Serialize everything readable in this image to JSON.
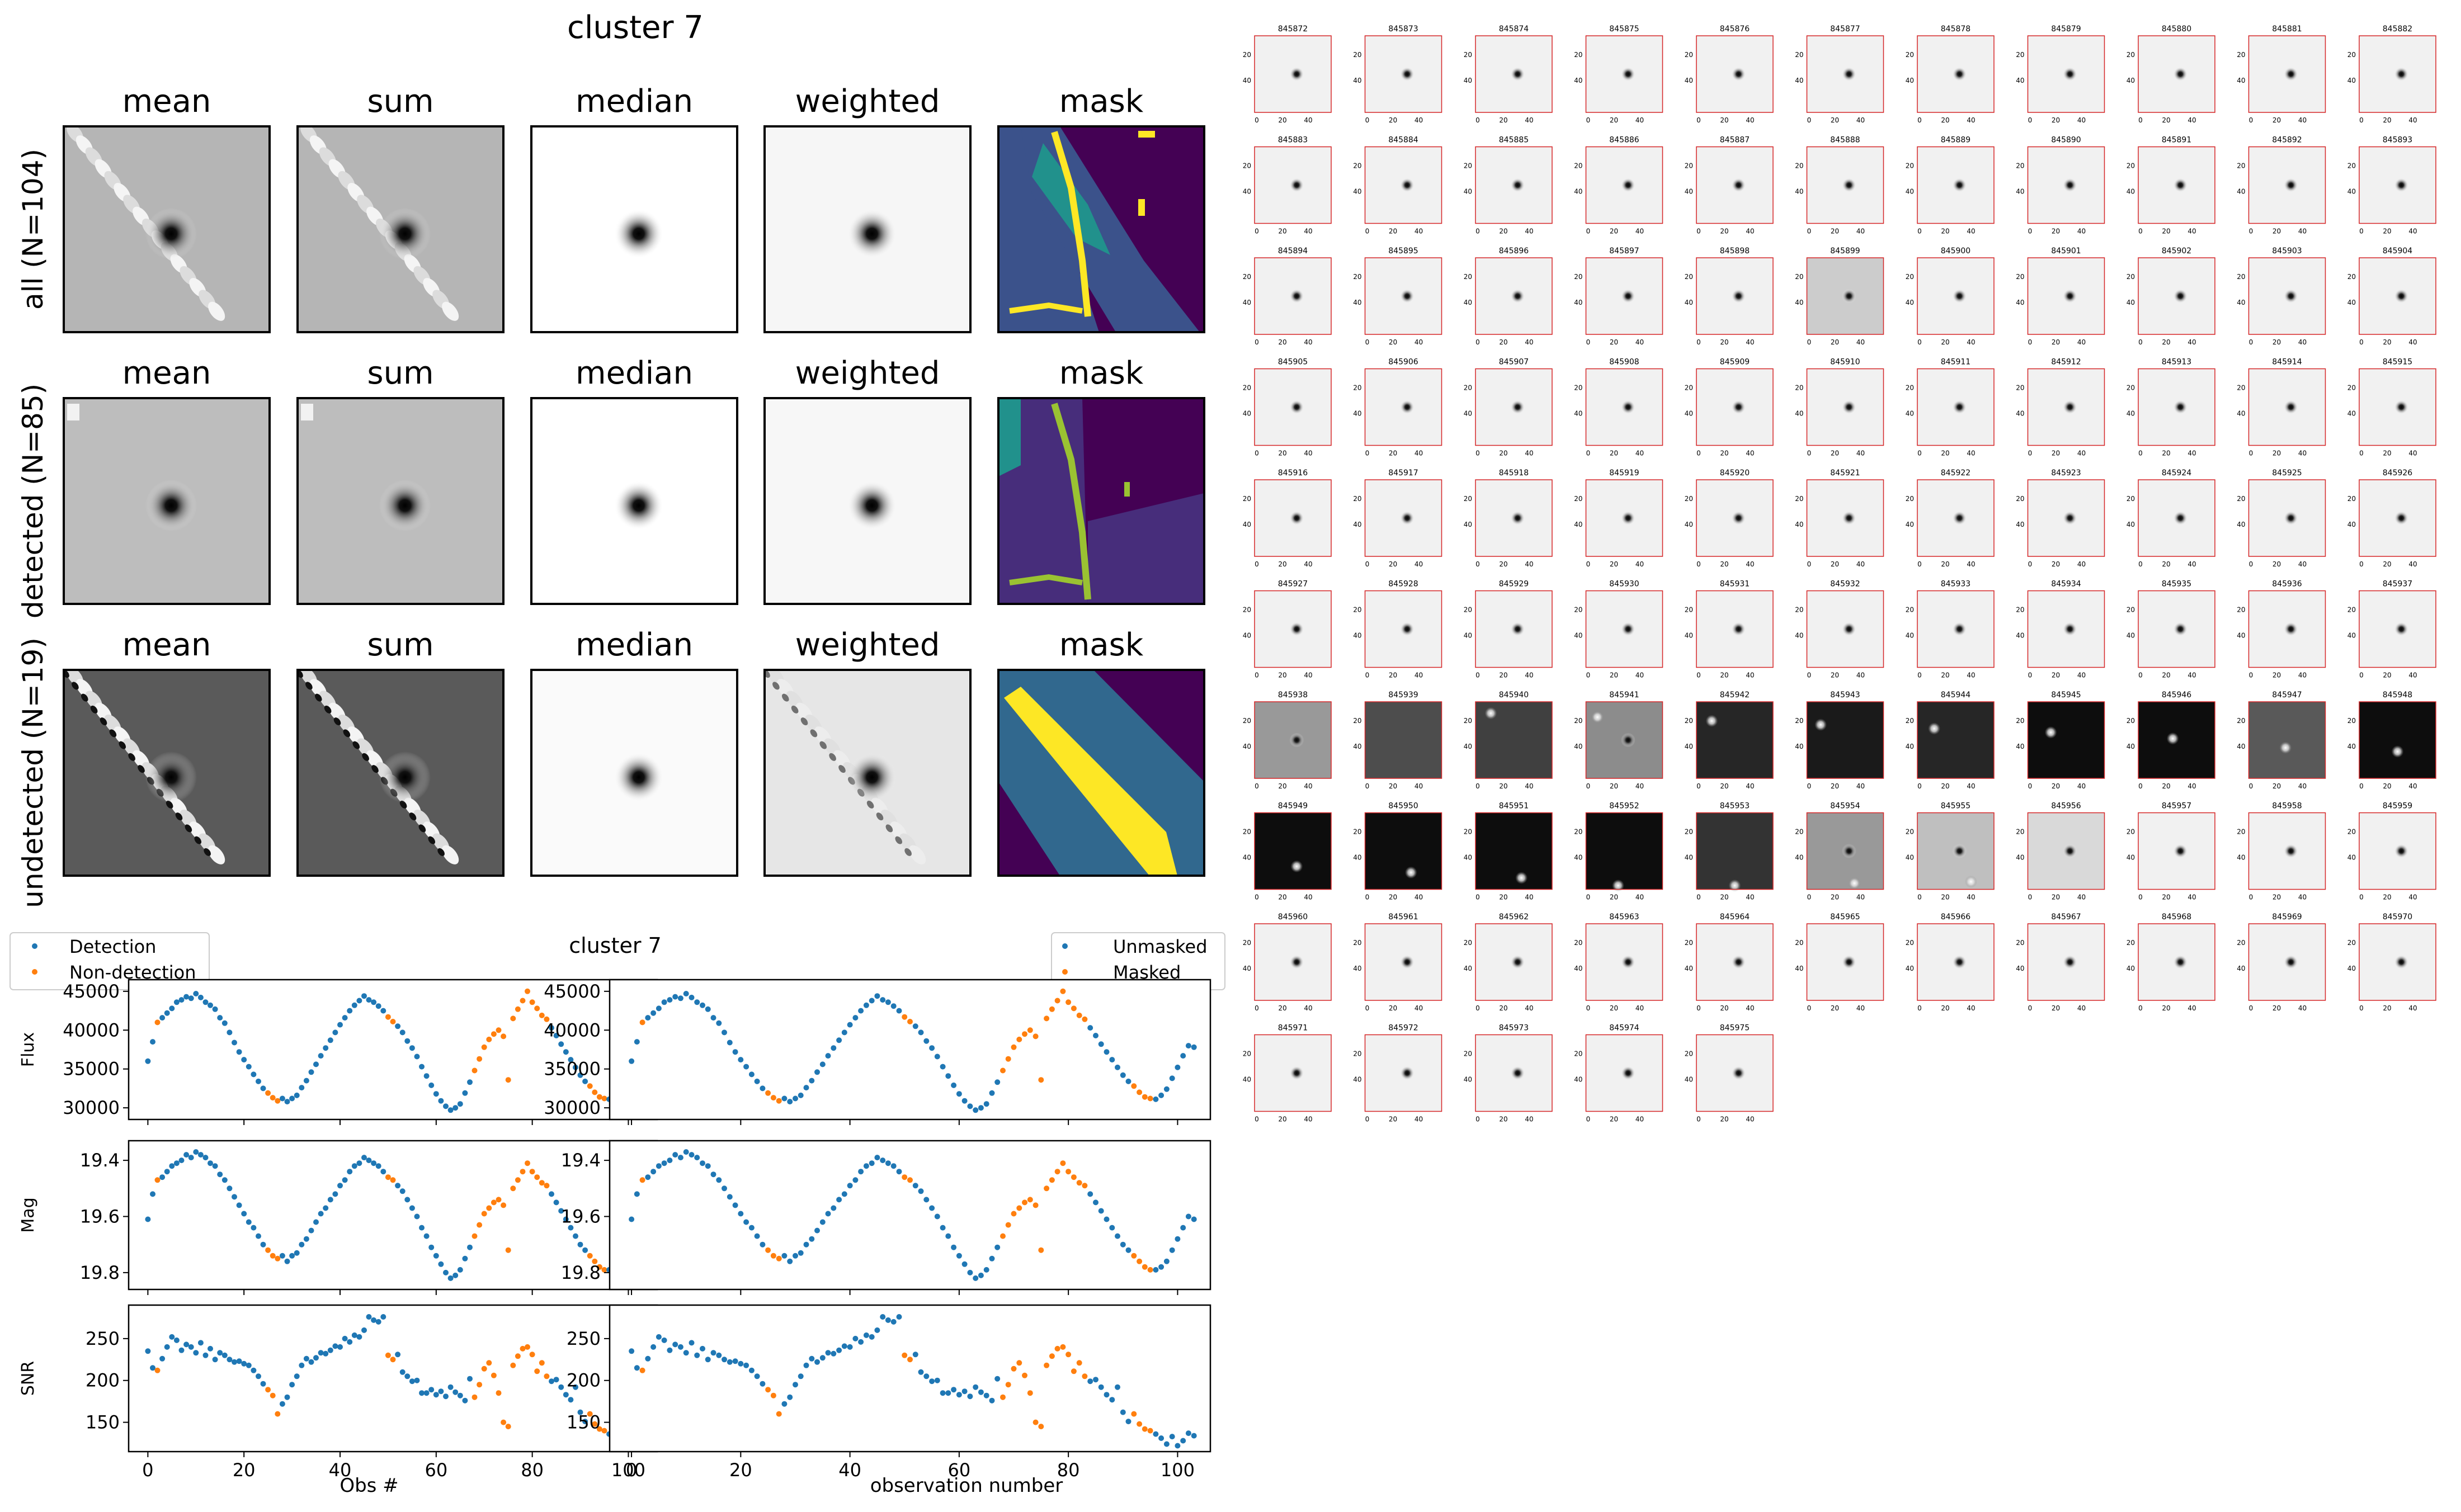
{
  "stack_title": "cluster 7",
  "col_labels": [
    "mean",
    "sum",
    "median",
    "weighted",
    "mask"
  ],
  "row_labels": [
    "all (N=104)",
    "detected (N=85)",
    "undetected (N=19)"
  ],
  "lc_title": "cluster 7",
  "legend_left": {
    "detection": "Detection",
    "non_detection": "Non-detection"
  },
  "legend_right": {
    "unmasked": "Unmasked",
    "masked": "Masked"
  },
  "xlabel_left": "Obs #",
  "xlabel_right": "observation number",
  "panels": [
    {
      "ylabel": "Flux",
      "ymin": 28500,
      "ymax": 46500,
      "ticks": [
        45000,
        40000,
        35000,
        30000
      ]
    },
    {
      "ylabel": "Mag",
      "ymin": 19.33,
      "ymax": 19.86,
      "ticks": [
        19.4,
        19.6,
        19.8
      ]
    },
    {
      "ylabel": "SNR",
      "ymin": 115,
      "ymax": 290,
      "ticks": [
        250,
        200,
        150
      ]
    }
  ],
  "xticks": [
    0,
    20,
    40,
    60,
    80,
    100
  ],
  "thumb_ticks_x": [
    "0",
    "20",
    "40"
  ],
  "thumb_ticks_y": [
    "20",
    "40"
  ],
  "thumb_first_id": 845872,
  "thumb_count": 104,
  "colors": {
    "detection": "#1f77b4",
    "non_detection": "#ff7f0e",
    "thumb_border": "#d62728"
  },
  "chart_data": {
    "type": "scatter",
    "x": [
      0,
      1,
      2,
      3,
      4,
      5,
      6,
      7,
      8,
      9,
      10,
      11,
      12,
      13,
      14,
      15,
      16,
      17,
      18,
      19,
      20,
      21,
      22,
      23,
      24,
      25,
      26,
      27,
      28,
      29,
      30,
      31,
      32,
      33,
      34,
      35,
      36,
      37,
      38,
      39,
      40,
      41,
      42,
      43,
      44,
      45,
      46,
      47,
      48,
      49,
      50,
      51,
      52,
      53,
      54,
      55,
      56,
      57,
      58,
      59,
      60,
      61,
      62,
      63,
      64,
      65,
      66,
      67,
      68,
      69,
      70,
      71,
      72,
      73,
      74,
      75,
      76,
      77,
      78,
      79,
      80,
      81,
      82,
      83,
      84,
      85,
      86,
      87,
      88,
      89,
      90,
      91,
      92,
      93,
      94,
      95,
      96,
      97,
      98,
      99,
      100,
      101,
      102,
      103
    ],
    "series": [
      {
        "name": "Flux",
        "values": [
          36000,
          38500,
          41000,
          41600,
          42200,
          42800,
          43600,
          43900,
          44300,
          44100,
          44700,
          44200,
          43600,
          43200,
          42700,
          41600,
          40900,
          39700,
          38400,
          37200,
          36200,
          35300,
          34300,
          33400,
          32500,
          31900,
          31300,
          30900,
          31200,
          30800,
          31200,
          31600,
          32600,
          33500,
          34600,
          35600,
          36700,
          37700,
          38700,
          39700,
          40700,
          41600,
          42500,
          43200,
          43800,
          44400,
          43900,
          43600,
          43100,
          42500,
          41700,
          41100,
          40500,
          39700,
          38600,
          37700,
          36600,
          35300,
          34100,
          32900,
          31800,
          30900,
          30200,
          29700,
          30000,
          30500,
          31900,
          33300,
          34800,
          36300,
          37800,
          38800,
          39500,
          40000,
          39200,
          33600,
          41500,
          42700,
          43800,
          45000,
          43600,
          42800,
          41900,
          41400,
          40300,
          39300,
          38200,
          37200,
          36200,
          35200,
          34200,
          33400,
          32800,
          32000,
          31400,
          31200,
          31100,
          31600,
          32400,
          33800,
          35200,
          36700,
          38000,
          37800
        ],
        "masks": [
          0,
          0,
          1,
          0,
          0,
          0,
          0,
          0,
          0,
          0,
          0,
          0,
          0,
          0,
          0,
          0,
          0,
          0,
          0,
          0,
          0,
          0,
          0,
          0,
          0,
          1,
          1,
          1,
          0,
          0,
          0,
          0,
          0,
          0,
          0,
          0,
          0,
          0,
          0,
          0,
          0,
          0,
          0,
          0,
          0,
          0,
          0,
          0,
          0,
          0,
          1,
          1,
          0,
          0,
          0,
          0,
          0,
          0,
          0,
          0,
          0,
          0,
          0,
          0,
          0,
          0,
          0,
          0,
          1,
          1,
          1,
          1,
          1,
          1,
          1,
          1,
          1,
          1,
          1,
          1,
          1,
          1,
          1,
          1,
          0,
          0,
          0,
          0,
          0,
          0,
          0,
          0,
          1,
          1,
          1,
          1,
          0,
          0,
          0,
          0,
          0,
          0,
          0,
          0
        ]
      },
      {
        "name": "Mag",
        "values": [
          19.61,
          19.52,
          19.47,
          19.46,
          19.44,
          19.42,
          19.41,
          19.4,
          19.38,
          19.39,
          19.37,
          19.38,
          19.39,
          19.41,
          19.42,
          19.45,
          19.47,
          19.5,
          19.53,
          19.56,
          19.59,
          19.62,
          19.64,
          19.67,
          19.7,
          19.72,
          19.74,
          19.75,
          19.74,
          19.76,
          19.74,
          19.73,
          19.7,
          19.68,
          19.65,
          19.62,
          19.59,
          19.57,
          19.54,
          19.52,
          19.49,
          19.47,
          19.44,
          19.42,
          19.41,
          19.39,
          19.4,
          19.41,
          19.42,
          19.44,
          19.46,
          19.47,
          19.49,
          19.51,
          19.54,
          19.57,
          19.6,
          19.64,
          19.67,
          19.71,
          19.74,
          19.77,
          19.8,
          19.82,
          19.81,
          19.79,
          19.75,
          19.71,
          19.67,
          19.63,
          19.59,
          19.57,
          19.55,
          19.54,
          19.56,
          19.72,
          19.5,
          19.47,
          19.44,
          19.41,
          19.44,
          19.46,
          19.48,
          19.49,
          19.52,
          19.55,
          19.58,
          19.61,
          19.64,
          19.67,
          19.7,
          19.72,
          19.74,
          19.76,
          19.78,
          19.79,
          19.79,
          19.78,
          19.76,
          19.72,
          19.68,
          19.64,
          19.6,
          19.61
        ],
        "masks": [
          0,
          0,
          1,
          0,
          0,
          0,
          0,
          0,
          0,
          0,
          0,
          0,
          0,
          0,
          0,
          0,
          0,
          0,
          0,
          0,
          0,
          0,
          0,
          0,
          0,
          1,
          1,
          1,
          0,
          0,
          0,
          0,
          0,
          0,
          0,
          0,
          0,
          0,
          0,
          0,
          0,
          0,
          0,
          0,
          0,
          0,
          0,
          0,
          0,
          0,
          1,
          1,
          0,
          0,
          0,
          0,
          0,
          0,
          0,
          0,
          0,
          0,
          0,
          0,
          0,
          0,
          0,
          0,
          1,
          1,
          1,
          1,
          1,
          1,
          1,
          1,
          1,
          1,
          1,
          1,
          1,
          1,
          1,
          1,
          0,
          0,
          0,
          0,
          0,
          0,
          0,
          0,
          1,
          1,
          1,
          1,
          0,
          0,
          0,
          0,
          0,
          0,
          0,
          0
        ]
      },
      {
        "name": "SNR",
        "values": [
          235,
          215,
          212,
          226,
          240,
          252,
          248,
          236,
          243,
          240,
          233,
          245,
          230,
          238,
          225,
          233,
          230,
          225,
          222,
          223,
          220,
          218,
          212,
          205,
          196,
          189,
          182,
          160,
          172,
          180,
          195,
          205,
          218,
          226,
          222,
          227,
          233,
          232,
          236,
          241,
          240,
          250,
          246,
          254,
          252,
          260,
          276,
          272,
          270,
          276,
          230,
          225,
          231,
          210,
          205,
          199,
          200,
          185,
          185,
          189,
          183,
          187,
          181,
          192,
          186,
          182,
          176,
          202,
          180,
          195,
          214,
          221,
          206,
          185,
          150,
          145,
          218,
          229,
          238,
          240,
          231,
          211,
          221,
          205,
          199,
          201,
          192,
          183,
          177,
          192,
          162,
          151,
          160,
          148,
          142,
          140,
          136,
          131,
          124,
          133,
          122,
          128,
          137,
          134
        ],
        "masks": [
          0,
          0,
          1,
          0,
          0,
          0,
          0,
          0,
          0,
          0,
          0,
          0,
          0,
          0,
          0,
          0,
          0,
          0,
          0,
          0,
          0,
          0,
          0,
          0,
          0,
          1,
          1,
          1,
          0,
          0,
          0,
          0,
          0,
          0,
          0,
          0,
          0,
          0,
          0,
          0,
          0,
          0,
          0,
          0,
          0,
          0,
          0,
          0,
          0,
          0,
          1,
          1,
          0,
          0,
          0,
          0,
          0,
          0,
          0,
          0,
          0,
          0,
          0,
          0,
          0,
          0,
          0,
          0,
          1,
          1,
          1,
          1,
          1,
          1,
          1,
          1,
          1,
          1,
          1,
          1,
          1,
          1,
          1,
          1,
          0,
          0,
          0,
          0,
          0,
          0,
          0,
          0,
          1,
          1,
          1,
          1,
          0,
          0,
          0,
          0,
          0,
          0,
          0,
          0
        ]
      }
    ],
    "xlim": [
      -4,
      106
    ]
  }
}
